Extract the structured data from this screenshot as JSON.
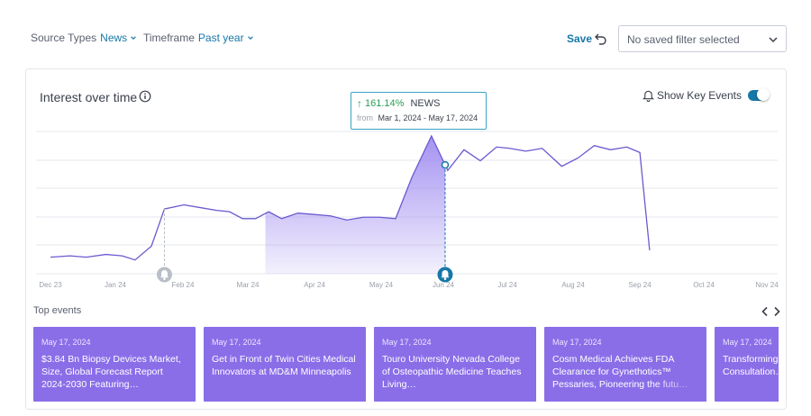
{
  "filters": {
    "source_label": "Source Types",
    "source_value": "News",
    "timeframe_label": "Timeframe",
    "timeframe_value": "Past year"
  },
  "actions": {
    "save_label": "Save",
    "saved_filter_placeholder": "No saved filter selected"
  },
  "card": {
    "title": "Interest over time",
    "show_key_events_label": "Show Key Events",
    "show_key_events_on": true
  },
  "tooltip": {
    "change": "161.14%",
    "source": "NEWS",
    "from_label": "from",
    "range": "Mar 1, 2024 - May 17, 2024"
  },
  "colors": {
    "accent": "#1677a8",
    "line": "#6a5ad0",
    "fill": "#9b86f0",
    "event_card": "#8a6ee8",
    "up": "#2a9d55"
  },
  "chart_data": {
    "type": "area",
    "x_ticks": [
      "Dec 23",
      "Jan 24",
      "Feb 24",
      "Mar 24",
      "Apr 24",
      "May 24",
      "Jun 24",
      "Jul 24",
      "Aug 24",
      "Sep 24",
      "Oct 24",
      "Nov 24"
    ],
    "x_range": [
      0,
      11
    ],
    "y_range": [
      0,
      100
    ],
    "grid": true,
    "y_tick_labels": false,
    "series": [
      {
        "x": [
          0,
          0.3,
          0.55,
          0.85,
          1.1,
          1.3,
          1.55,
          1.75,
          2.05,
          2.3,
          2.55,
          2.75,
          2.95,
          3.15,
          3.35,
          3.55,
          3.8,
          4.05,
          4.3,
          4.55,
          4.8,
          5.05,
          5.3,
          5.55,
          5.85,
          6.1,
          6.35,
          6.6,
          6.85,
          7.05,
          7.3,
          7.55,
          7.85,
          8.1,
          8.35,
          8.6,
          8.85,
          9.05,
          9.2
        ],
        "values": [
          12,
          13,
          12,
          14,
          13,
          10,
          20,
          47,
          50,
          48,
          46,
          45,
          40,
          40,
          45,
          40,
          44,
          43,
          42,
          39,
          41,
          41,
          40,
          70,
          100,
          75,
          90,
          82,
          92,
          91,
          89,
          91,
          78,
          84,
          93,
          90,
          92,
          88,
          17
        ]
      }
    ],
    "highlight_x_range": [
      3.3,
      6.06
    ],
    "highlight_peak_x": 6.06,
    "key_event_x": [
      1.75,
      6.06
    ],
    "annotation": "161.14% NEWS"
  },
  "events_label": "Top events",
  "events": [
    {
      "date": "May 17, 2024",
      "title": "$3.84 Bn Biopsy Devices Market, Size, Global Forecast Report 2024-2030 Featuring…"
    },
    {
      "date": "May 17, 2024",
      "title": "Get in Front of Twin Cities Medical Innovators at MD&M Minneapolis"
    },
    {
      "date": "May 17, 2024",
      "title": "Touro University Nevada College of Osteopathic Medicine Teaches Living…"
    },
    {
      "date": "May 17, 2024",
      "title": "Cosm Medical Achieves FDA Clearance for Gynethotics™ Pessaries, Pioneering the futu…"
    },
    {
      "date": "May 17, 2024",
      "title": "Transforming AI-Powered Virtual Consultation…"
    }
  ]
}
